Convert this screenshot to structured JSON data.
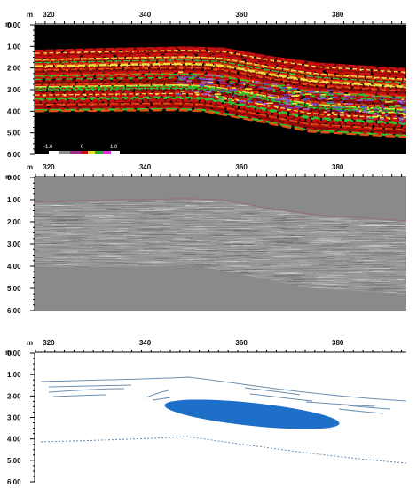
{
  "panels": [
    {
      "id": "attribute-section",
      "x_unit": "m",
      "y_unit": "m",
      "x_ticks": [
        "320",
        "340",
        "360",
        "380"
      ],
      "depth_ticks": [
        "0.00",
        "1.00",
        "2.00",
        "3.00",
        "4.00",
        "5.00",
        "6.00"
      ],
      "colorbar": {
        "min_label": "-1.0",
        "mid_label": "0",
        "max_label": "1.0"
      }
    },
    {
      "id": "gpr-amplitude-section",
      "x_unit": "m",
      "y_unit": "m",
      "x_ticks": [
        "320",
        "340",
        "360",
        "380"
      ],
      "depth_ticks": [
        "0.00",
        "1.00",
        "2.00",
        "3.00",
        "4.00",
        "5.00",
        "6.00"
      ]
    },
    {
      "id": "interpretation-section",
      "x_unit": "m",
      "y_unit": "m",
      "x_ticks": [
        "320",
        "340",
        "360",
        "380"
      ],
      "depth_ticks": [
        "0.00",
        "1.00",
        "2.00",
        "3.00",
        "4.00",
        "5.00",
        "6.00"
      ]
    }
  ],
  "colors": {
    "attribute_background": "#000000",
    "attribute_red": "#c81010",
    "attribute_yellow": "#f0e040",
    "attribute_green": "#30c030",
    "attribute_purple": "#8040c0",
    "gpr_background": "#8a8a8a",
    "interpretation_lens": "#1e6fc8",
    "interpretation_lines": "#6a8fb0"
  }
}
